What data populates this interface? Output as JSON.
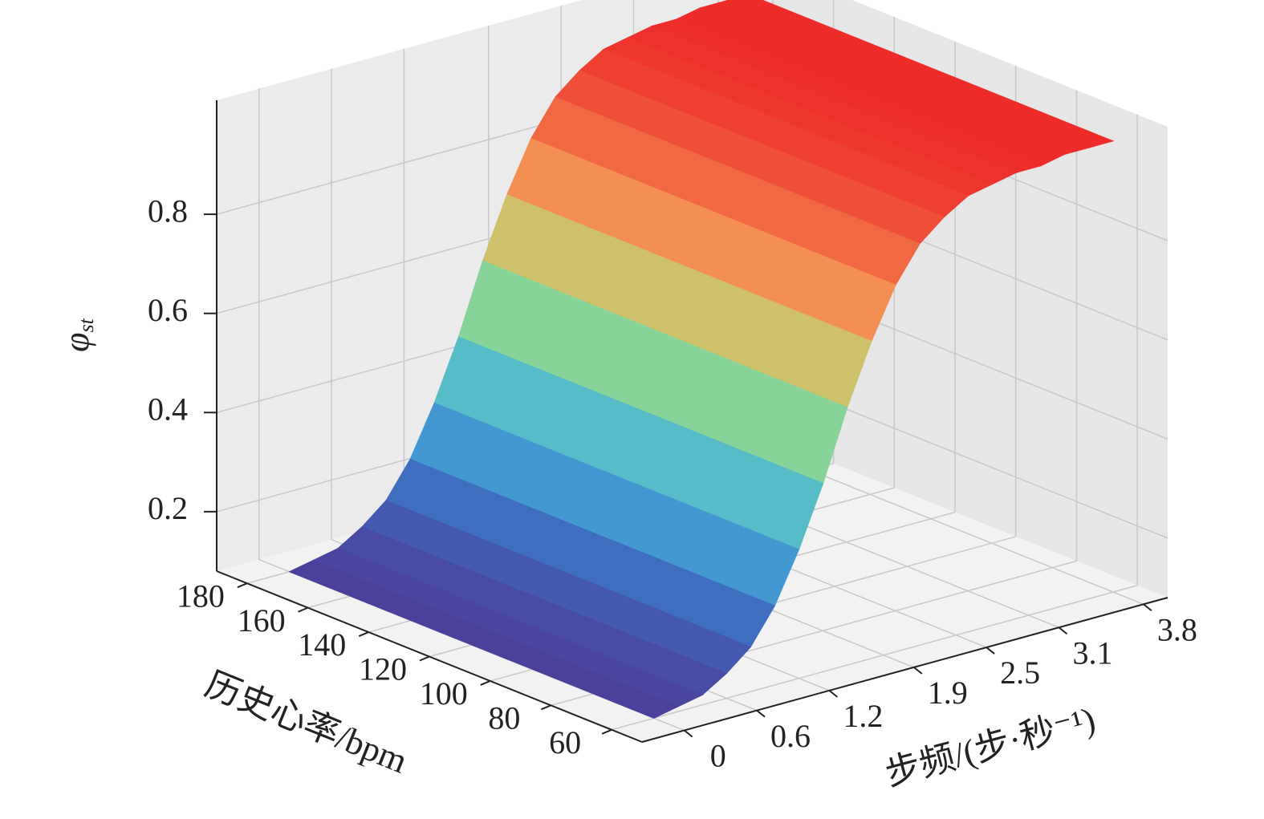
{
  "chart_data": {
    "type": "surface",
    "x_label": "步频/(步·秒⁻¹)",
    "y_label": "历史心率/bpm",
    "z_label": {
      "symbol": "φ",
      "subscript": "st"
    },
    "x": [
      0,
      0.2,
      0.4,
      0.6,
      0.8,
      1.0,
      1.2,
      1.4,
      1.6,
      1.8,
      2.0,
      2.2,
      2.4,
      2.6,
      2.8,
      3.0,
      3.2,
      3.4,
      3.6,
      3.8
    ],
    "y_range": [
      60,
      180
    ],
    "values": [
      0.08,
      0.09,
      0.1,
      0.13,
      0.17,
      0.24,
      0.34,
      0.46,
      0.6,
      0.72,
      0.82,
      0.89,
      0.93,
      0.96,
      0.97,
      0.98,
      0.98,
      0.99,
      0.99,
      0.99
    ],
    "xlim": [
      -0.35,
      4.0
    ],
    "ylim": [
      50,
      190
    ],
    "zlim": [
      0.08,
      1.03
    ],
    "xticks": [
      0,
      0.6,
      1.2,
      1.9,
      2.5,
      3.1,
      3.8
    ],
    "yticks": [
      60,
      80,
      100,
      120,
      140,
      160,
      180
    ],
    "zticks": [
      0.2,
      0.4,
      0.6,
      0.8
    ],
    "grid": true,
    "colormap": [
      "#4b3f99",
      "#3f6fc2",
      "#46b0da",
      "#66c9b5",
      "#a9dd7b",
      "#f6a35b",
      "#f06a43",
      "#ee2d2b"
    ]
  }
}
